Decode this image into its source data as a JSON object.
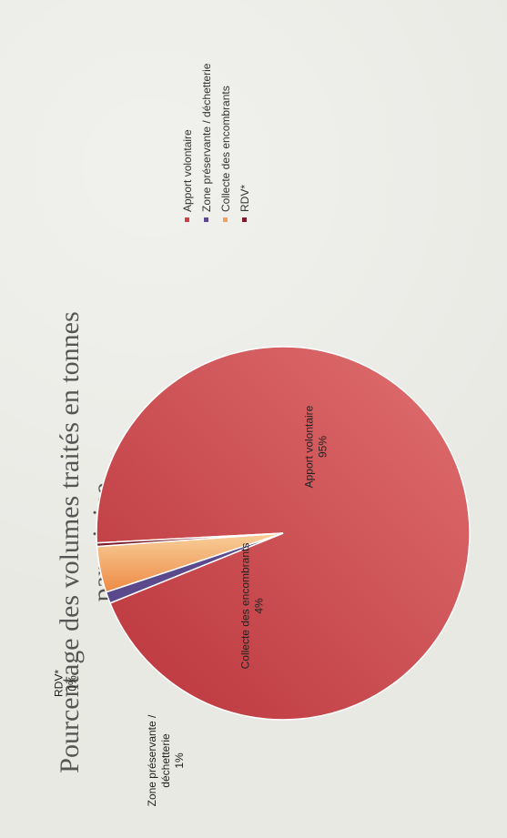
{
  "chart_data": {
    "type": "pie",
    "title": "Pourcentage des volumes traités en tonnes par origine",
    "slices": [
      {
        "name": "Apport volontaire",
        "value": 95,
        "label": "95%",
        "color": "#cf3f44"
      },
      {
        "name": "Zone préservante / déchetterie",
        "value": 1,
        "label": "1%",
        "color": "#5a4a8c"
      },
      {
        "name": "Collecte des encombrants",
        "value": 4,
        "label": "4%",
        "color": "#f1a05e"
      },
      {
        "name": "RDV*",
        "value": 0.3,
        "label": "0%",
        "color": "#7b1c2b"
      }
    ],
    "data_labels": [
      {
        "lines": [
          "Apport volontaire",
          "95%"
        ]
      },
      {
        "lines": [
          "Zone préservante /",
          "déchetterie",
          "1%"
        ]
      },
      {
        "lines": [
          "Collecte des encombrants",
          "4%"
        ]
      },
      {
        "lines": [
          "RDV*",
          "0%"
        ]
      }
    ],
    "legend": {
      "position": "right",
      "entries": [
        {
          "label": "Apport volontaire",
          "color": "#cf3f44"
        },
        {
          "label": "Zone préservante / déchetterie",
          "color": "#5a4a8c"
        },
        {
          "label": "Collecte des encombrants",
          "color": "#f1a05e"
        },
        {
          "label": "RDV*",
          "color": "#7b1c2b"
        }
      ]
    }
  }
}
